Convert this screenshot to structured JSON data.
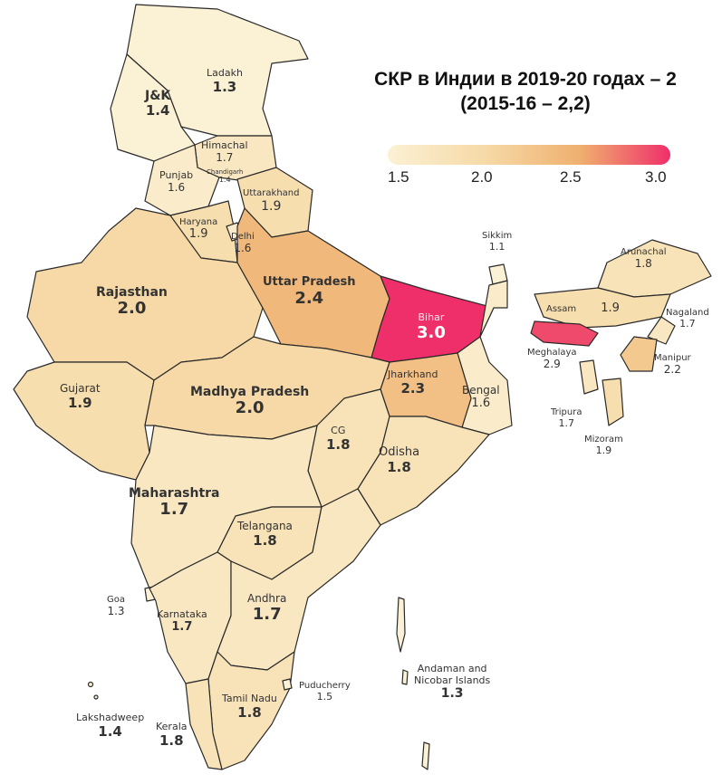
{
  "title": {
    "line1": "СКР в Индии в 2019-20 годах – 2",
    "line2": "(2015-16 – 2,2)"
  },
  "legend": {
    "ticks": [
      "1.5",
      "2.0",
      "2.5",
      "3.0"
    ],
    "range": [
      1.5,
      3.0
    ],
    "colors": [
      "#fbf1d4",
      "#f6d9a6",
      "#efb06f",
      "#ef2f6a"
    ]
  },
  "regions": {
    "ladakh": {
      "name": "Ladakh",
      "value": "1.3"
    },
    "jk": {
      "name": "J&K",
      "value": "1.4"
    },
    "himachal": {
      "name": "Himachal",
      "value": "1.7"
    },
    "punjab": {
      "name": "Punjab",
      "value": "1.6"
    },
    "chandigarh": {
      "name": "Chandigarh",
      "value": "1.4"
    },
    "uttarakhand": {
      "name": "Uttarakhand",
      "value": "1.9"
    },
    "haryana": {
      "name": "Haryana",
      "value": "1.9"
    },
    "delhi": {
      "name": "Delhi",
      "value": "1.6"
    },
    "rajasthan": {
      "name": "Rajasthan",
      "value": "2.0"
    },
    "up": {
      "name": "Uttar Pradesh",
      "value": "2.4"
    },
    "bihar": {
      "name": "Bihar",
      "value": "3.0"
    },
    "sikkim": {
      "name": "Sikkim",
      "value": "1.1"
    },
    "arunachal": {
      "name": "Arunachal",
      "value": "1.8"
    },
    "assam": {
      "name": "Assam",
      "value": "1.9"
    },
    "nagaland": {
      "name": "Nagaland",
      "value": "1.7"
    },
    "meghalaya": {
      "name": "Meghalaya",
      "value": "2.9"
    },
    "manipur": {
      "name": "Manipur",
      "value": "2.2"
    },
    "tripura": {
      "name": "Tripura",
      "value": "1.7"
    },
    "mizoram": {
      "name": "Mizoram",
      "value": "1.9"
    },
    "gujarat": {
      "name": "Gujarat",
      "value": "1.9"
    },
    "mp": {
      "name": "Madhya Pradesh",
      "value": "2.0"
    },
    "jharkhand": {
      "name": "Jharkhand",
      "value": "2.3"
    },
    "bengal": {
      "name": "Bengal",
      "value": "1.6"
    },
    "cg": {
      "name": "CG",
      "value": "1.8"
    },
    "odisha": {
      "name": "Odisha",
      "value": "1.8"
    },
    "maharashtra": {
      "name": "Maharashtra",
      "value": "1.7"
    },
    "telangana": {
      "name": "Telangana",
      "value": "1.8"
    },
    "goa": {
      "name": "Goa",
      "value": "1.3"
    },
    "karnataka": {
      "name": "Karnataka",
      "value": "1.7"
    },
    "andhra": {
      "name": "Andhra",
      "value": "1.7"
    },
    "andaman": {
      "name": "Andaman and Nicobar Islands",
      "name_line1": "Andaman and",
      "name_line2": "Nicobar Islands",
      "value": "1.3"
    },
    "puducherry": {
      "name": "Puducherry",
      "value": "1.5"
    },
    "tamilnadu": {
      "name": "Tamil Nadu",
      "value": "1.8"
    },
    "lakshadweep": {
      "name": "Lakshadweep",
      "value": "1.4"
    },
    "kerala": {
      "name": "Kerala",
      "value": "1.8"
    }
  }
}
